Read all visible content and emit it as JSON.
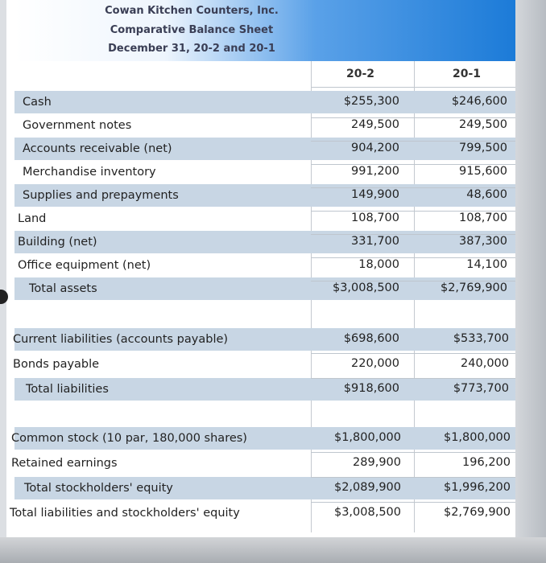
{
  "header": {
    "company": "Cowan Kitchen Counters, Inc.",
    "statement": "Comparative Balance Sheet",
    "date": "December 31, 20-2 and 20-1"
  },
  "columns": {
    "year1": "20-2",
    "year2": "20-1"
  },
  "assets": [
    {
      "label": "Cash",
      "v1": "$255,300",
      "v2": "$246,600"
    },
    {
      "label": "Government notes",
      "v1": "249,500",
      "v2": "249,500"
    },
    {
      "label": "Accounts receivable (net)",
      "v1": "904,200",
      "v2": "799,500"
    },
    {
      "label": "Merchandise inventory",
      "v1": "991,200",
      "v2": "915,600"
    },
    {
      "label": "Supplies and prepayments",
      "v1": "149,900",
      "v2": "48,600"
    },
    {
      "label": "Land",
      "v1": "108,700",
      "v2": "108,700"
    },
    {
      "label": "Building (net)",
      "v1": "331,700",
      "v2": "387,300"
    },
    {
      "label": "Office equipment (net)",
      "v1": "18,000",
      "v2": "14,100"
    },
    {
      "label": "Total assets",
      "v1": "$3,008,500",
      "v2": "$2,769,900"
    }
  ],
  "liabilities": [
    {
      "label": "Current liabilities (accounts payable)",
      "v1": "$698,600",
      "v2": "$533,700"
    },
    {
      "label": "Bonds payable",
      "v1": "220,000",
      "v2": "240,000"
    },
    {
      "label": "Total liabilities",
      "v1": "$918,600",
      "v2": "$773,700"
    }
  ],
  "equity": [
    {
      "label": "Common stock (10 par, 180,000 shares)",
      "v1": "$1,800,000",
      "v2": "$1,800,000"
    },
    {
      "label": "Retained earnings",
      "v1": "289,900",
      "v2": "196,200"
    },
    {
      "label": "Total stockholders' equity",
      "v1": "$2,089,900",
      "v2": "$1,996,200"
    },
    {
      "label": "Total liabilities and stockholders' equity",
      "v1": "$3,008,500",
      "v2": "$2,769,900"
    }
  ]
}
